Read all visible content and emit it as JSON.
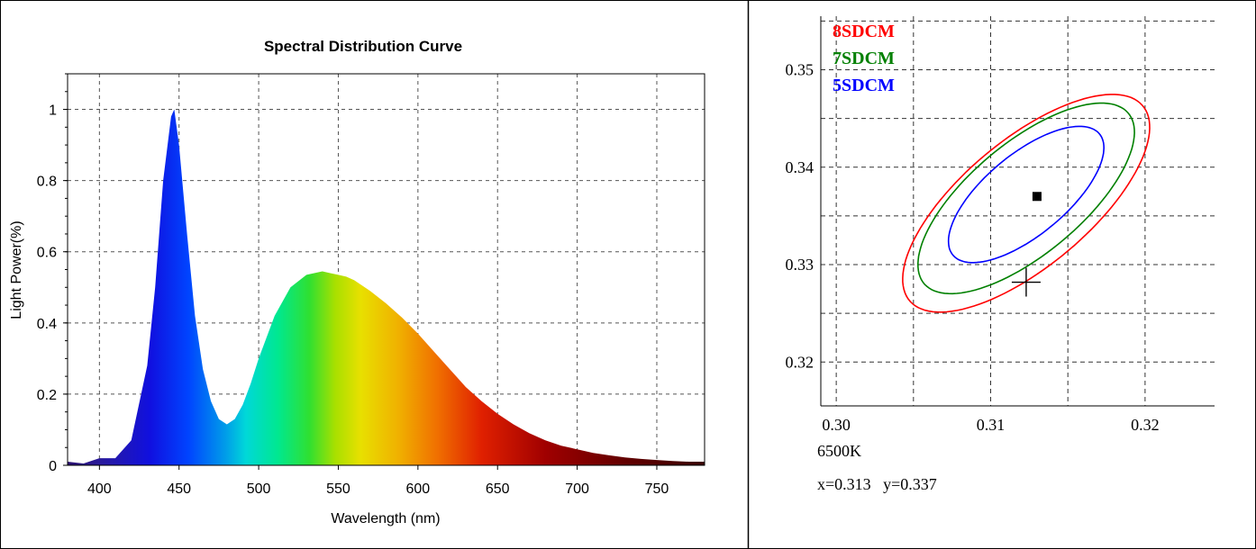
{
  "spectral_chart": {
    "title": "Spectral Distribution Curve",
    "xlabel": "Wavelength  (nm)",
    "ylabel": "Light Power(%)",
    "x_ticks": [
      "400",
      "450",
      "500",
      "550",
      "600",
      "650",
      "700",
      "750"
    ],
    "y_ticks": [
      "0",
      "0.2",
      "0.4",
      "0.6",
      "0.8",
      "1"
    ]
  },
  "cie_chart": {
    "x_ticks": [
      "0.30",
      "0.31",
      "0.32"
    ],
    "y_ticks": [
      "0.32",
      "0.33",
      "0.34",
      "0.35"
    ],
    "legend": [
      {
        "label": "8SDCM",
        "color": "#ff0000"
      },
      {
        "label": "7SDCM",
        "color": "#008000"
      },
      {
        "label": "5SDCM",
        "color": "#0000ff"
      }
    ],
    "cct_label": "6500K",
    "coords_text": "x=0.313   y=0.337"
  },
  "chart_data": [
    {
      "type": "area",
      "title": "Spectral Distribution Curve",
      "xlabel": "Wavelength  (nm)",
      "ylabel": "Light Power(%)",
      "xlim": [
        380,
        780
      ],
      "ylim": [
        0,
        1.1
      ],
      "grid": true,
      "x": [
        380,
        390,
        400,
        410,
        420,
        430,
        435,
        440,
        445,
        447,
        450,
        455,
        460,
        465,
        470,
        475,
        480,
        485,
        490,
        495,
        500,
        510,
        520,
        530,
        540,
        545,
        550,
        555,
        560,
        570,
        580,
        590,
        600,
        610,
        620,
        630,
        640,
        650,
        660,
        670,
        680,
        690,
        700,
        710,
        720,
        730,
        740,
        750,
        760,
        770,
        780
      ],
      "values": [
        0.01,
        0.005,
        0.02,
        0.02,
        0.07,
        0.28,
        0.5,
        0.8,
        0.98,
        1.0,
        0.9,
        0.65,
        0.42,
        0.27,
        0.18,
        0.13,
        0.115,
        0.13,
        0.17,
        0.23,
        0.3,
        0.42,
        0.5,
        0.535,
        0.545,
        0.54,
        0.535,
        0.53,
        0.52,
        0.49,
        0.455,
        0.415,
        0.37,
        0.32,
        0.27,
        0.22,
        0.18,
        0.145,
        0.115,
        0.09,
        0.07,
        0.055,
        0.045,
        0.035,
        0.028,
        0.022,
        0.018,
        0.015,
        0.012,
        0.01,
        0.01
      ]
    },
    {
      "type": "scatter",
      "xlim": [
        0.299,
        0.3245
      ],
      "ylim": [
        0.3155,
        0.3555
      ],
      "grid": true,
      "legend": [
        "8SDCM",
        "7SDCM",
        "5SDCM"
      ],
      "point": {
        "x": 0.313,
        "y": 0.337,
        "label": "x=0.313   y=0.337"
      },
      "reference": {
        "name": "6500K",
        "x": 0.3123,
        "y": 0.3282
      },
      "series": [
        {
          "name": "8SDCM",
          "color": "#ff0000",
          "center": [
            0.3123,
            0.3363
          ],
          "semi_axes": [
            0.0128,
            0.005
          ],
          "angle_deg": 58
        },
        {
          "name": "7SDCM",
          "color": "#008000",
          "center": [
            0.3123,
            0.3368
          ],
          "semi_axes": [
            0.0112,
            0.0044
          ],
          "angle_deg": 58
        },
        {
          "name": "5SDCM",
          "color": "#0000ff",
          "center": [
            0.3123,
            0.3372
          ],
          "semi_axes": [
            0.008,
            0.0032
          ],
          "angle_deg": 58
        }
      ]
    }
  ]
}
